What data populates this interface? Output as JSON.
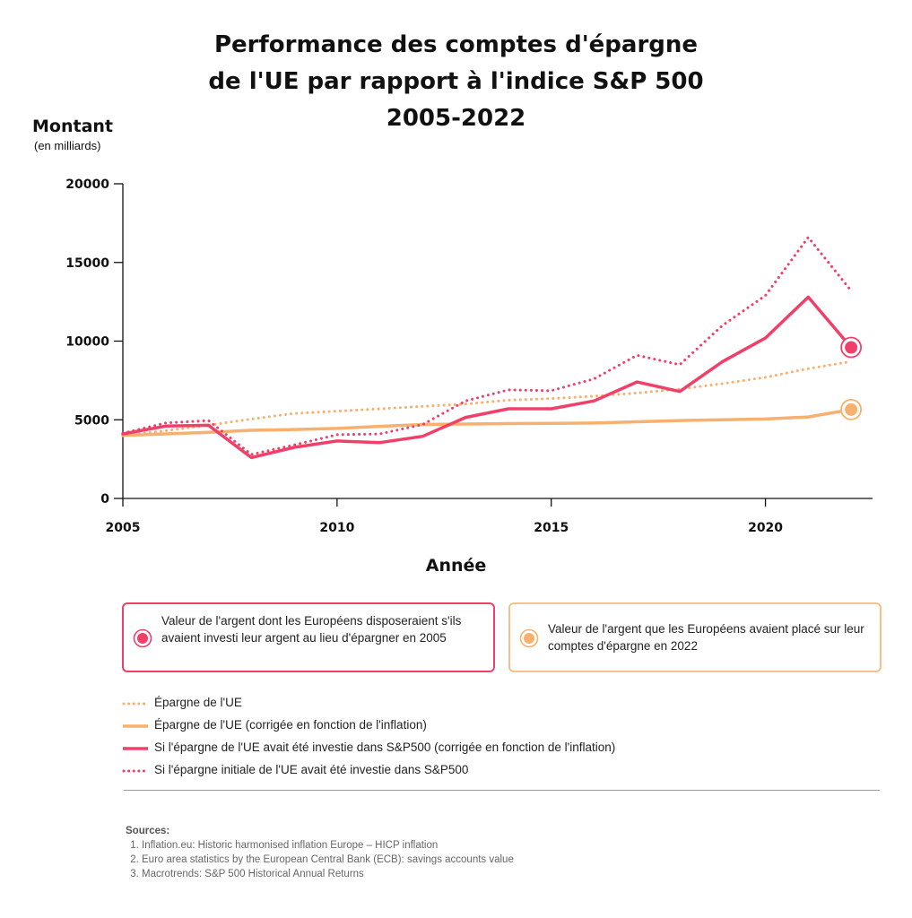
{
  "header": {
    "title_lines": [
      "Performance des comptes d'épargne",
      "de l'UE  par rapport à l'indice S&P 500",
      "2005-2022"
    ]
  },
  "axis": {
    "ylabel": "Montant",
    "yunit": "(en milliards)",
    "xlabel": "Année"
  },
  "callouts": [
    {
      "text": "Valeur de l'argent dont les Européens disposeraient s'ils avaient investi leur argent au lieu d'épargner en 2005",
      "color": "#f0406a"
    },
    {
      "text": "Valeur de l'argent que les Européens avaient placé sur leur comptes d'épargne en 2022",
      "color": "#f7b06d"
    }
  ],
  "legend": [
    {
      "label": "Épargne de l'UE",
      "color": "#f7b06d",
      "style": "dotted"
    },
    {
      "label": "Épargne de l'UE (corrigée en fonction de l'inflation)",
      "color": "#f7b06d",
      "style": "solid"
    },
    {
      "label": "Si l'épargne de l'UE avait été investie dans S&P500 (corrigée en fonction de l'inflation)",
      "color": "#f0406a",
      "style": "solid"
    },
    {
      "label": "Si l'épargne initiale de l'UE avait été investie dans S&P500",
      "color": "#f0406a",
      "style": "dotted"
    }
  ],
  "sources": {
    "heading": "Sources:",
    "items": [
      "Inflation.eu: Historic harmonised inflation Europe – HICP inflation",
      "Euro area statistics by the European Central Bank (ECB): savings accounts value",
      "Macrotrends: S&P 500 Historical Annual Returns"
    ]
  },
  "chart_data": {
    "type": "line",
    "x": [
      2005,
      2006,
      2007,
      2008,
      2009,
      2010,
      2011,
      2012,
      2013,
      2014,
      2015,
      2016,
      2017,
      2018,
      2019,
      2020,
      2021,
      2022
    ],
    "xlim": [
      2005,
      2022.5
    ],
    "ylim": [
      0,
      20000
    ],
    "xticks": [
      2005,
      2010,
      2015,
      2020
    ],
    "yticks": [
      0,
      5000,
      10000,
      15000,
      20000
    ],
    "grid": false,
    "series": [
      {
        "name": "Épargne de l'UE",
        "color": "#f7b06d",
        "style": "dotted",
        "values": [
          4000,
          4300,
          4650,
          5050,
          5400,
          5550,
          5700,
          5850,
          6000,
          6250,
          6350,
          6500,
          6700,
          6950,
          7300,
          7700,
          8250,
          8700
        ]
      },
      {
        "name": "Épargne de l'UE (corrigée en fonction de l'inflation)",
        "color": "#f7b06d",
        "style": "solid",
        "values": [
          4000,
          4100,
          4200,
          4330,
          4380,
          4450,
          4580,
          4700,
          4730,
          4760,
          4770,
          4790,
          4870,
          4950,
          5000,
          5050,
          5180,
          5650
        ]
      },
      {
        "name": "Si l'épargne de l'UE avait été investie dans S&P500 (corrigée en fonction de l'inflation)",
        "color": "#f0406a",
        "style": "solid",
        "values": [
          4100,
          4600,
          4650,
          2600,
          3250,
          3650,
          3550,
          3950,
          5150,
          5700,
          5700,
          6200,
          7400,
          6800,
          8700,
          10200,
          12800,
          9600
        ]
      },
      {
        "name": "Si l'épargne initiale de l'UE avait été investie dans S&P500",
        "color": "#f0406a",
        "style": "dotted",
        "values": [
          4150,
          4800,
          4950,
          2800,
          3400,
          4050,
          4100,
          4700,
          6200,
          6900,
          6850,
          7600,
          9100,
          8500,
          11000,
          12900,
          16600,
          13200
        ]
      }
    ],
    "end_markers": [
      {
        "x": 2022,
        "y": 9600,
        "color": "#f0406a"
      },
      {
        "x": 2022,
        "y": 5650,
        "color": "#f7b06d"
      }
    ]
  }
}
